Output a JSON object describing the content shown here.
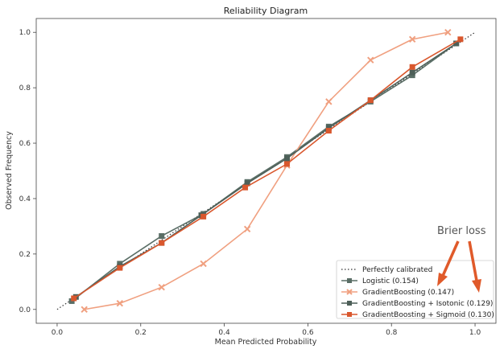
{
  "chart_data": {
    "type": "line",
    "title": "Reliability Diagram",
    "xlabel": "Mean Predicted Probability",
    "ylabel": "Observed Frequency",
    "xlim": [
      -0.05,
      1.05
    ],
    "ylim": [
      -0.05,
      1.05
    ],
    "xticks": [
      "0.0",
      "0.2",
      "0.4",
      "0.6",
      "0.8",
      "1.0"
    ],
    "yticks": [
      "0.0",
      "0.2",
      "0.4",
      "0.6",
      "0.8",
      "1.0"
    ],
    "xtick_values": [
      0,
      0.2,
      0.4,
      0.6,
      0.8,
      1.0
    ],
    "ytick_values": [
      0,
      0.2,
      0.4,
      0.6,
      0.8,
      1.0
    ],
    "grid": false,
    "legend_position": "lower-right",
    "reference": {
      "name": "Perfectly calibrated",
      "x": [
        0,
        1
      ],
      "y": [
        0,
        1
      ],
      "color": "#333333"
    },
    "series": [
      {
        "name": "Logistic (0.154)",
        "color": "#5a6e66",
        "marker": "square",
        "x": [
          0.035,
          0.15,
          0.25,
          0.35,
          0.455,
          0.55,
          0.65,
          0.75,
          0.85,
          0.955
        ],
        "y": [
          0.03,
          0.165,
          0.265,
          0.345,
          0.46,
          0.55,
          0.66,
          0.75,
          0.845,
          0.96
        ]
      },
      {
        "name": "GradientBoosting (0.147)",
        "color": "#f0a080",
        "marker": "x",
        "x": [
          0.065,
          0.15,
          0.25,
          0.35,
          0.455,
          0.55,
          0.65,
          0.75,
          0.85,
          0.935
        ],
        "y": [
          0.0,
          0.022,
          0.08,
          0.165,
          0.29,
          0.52,
          0.75,
          0.9,
          0.975,
          1.0
        ]
      },
      {
        "name": "GradientBoosting + Isotonic (0.129)",
        "color": "#4d5f58",
        "marker": "square",
        "x": [
          0.045,
          0.15,
          0.25,
          0.345,
          0.455,
          0.55,
          0.65,
          0.75,
          0.85,
          0.955
        ],
        "y": [
          0.045,
          0.155,
          0.24,
          0.34,
          0.455,
          0.545,
          0.655,
          0.755,
          0.855,
          0.96
        ]
      },
      {
        "name": "GradientBoosting + Sigmoid (0.130)",
        "color": "#d9572d",
        "marker": "square",
        "x": [
          0.04,
          0.15,
          0.25,
          0.35,
          0.45,
          0.55,
          0.65,
          0.75,
          0.85,
          0.965
        ],
        "y": [
          0.04,
          0.15,
          0.24,
          0.335,
          0.44,
          0.525,
          0.645,
          0.755,
          0.875,
          0.975
        ]
      }
    ],
    "annotation": {
      "text": "Brier loss",
      "color": "#e05a2a"
    }
  }
}
